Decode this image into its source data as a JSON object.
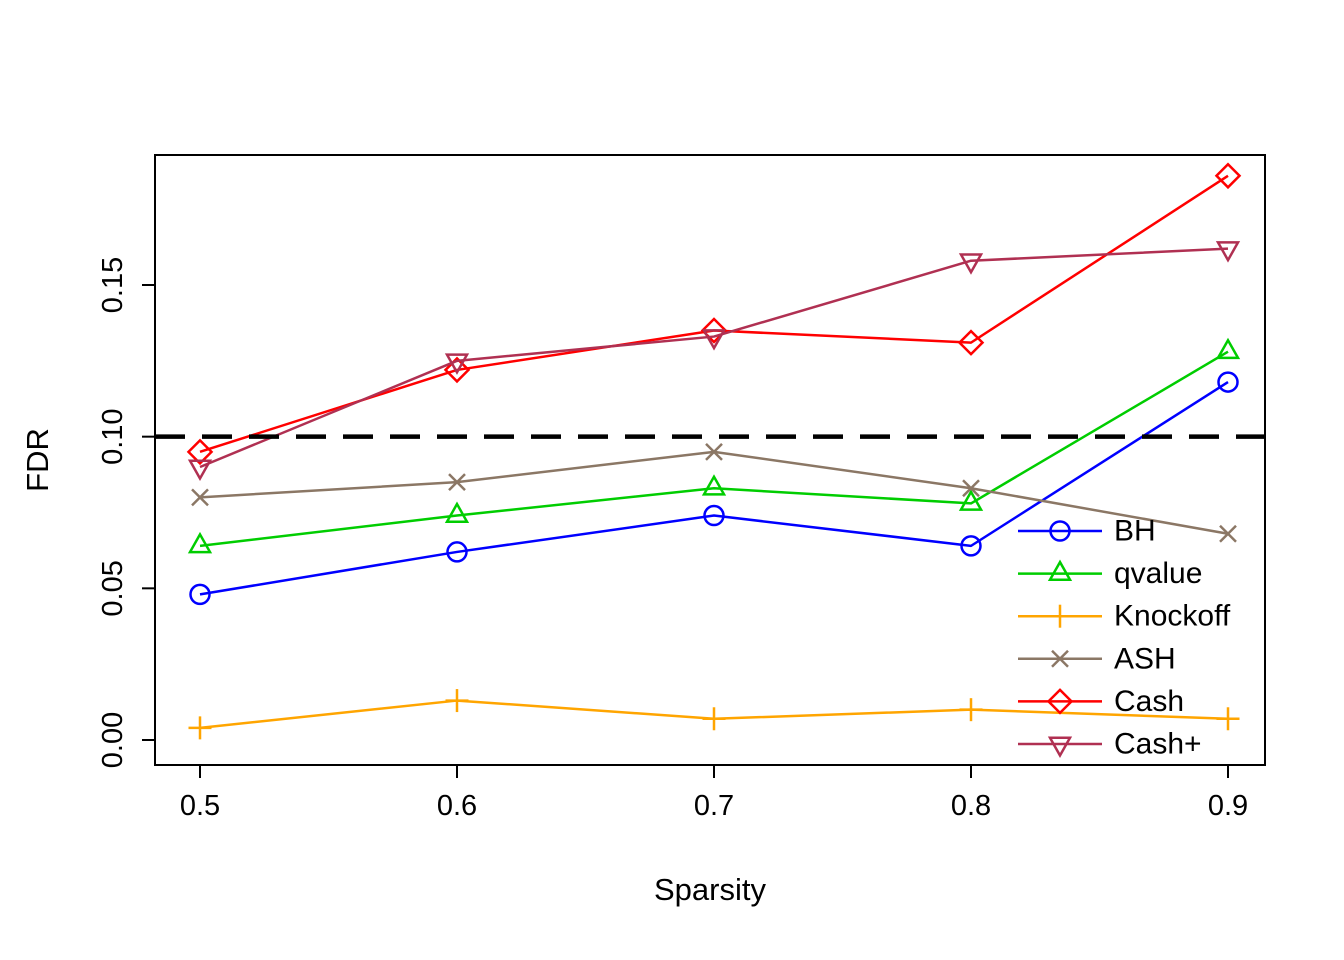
{
  "chart_data": {
    "type": "line",
    "title": "",
    "xlabel": "Sparsity",
    "ylabel": "FDR",
    "x": [
      0.5,
      0.6,
      0.7,
      0.8,
      0.9
    ],
    "x_ticks": [
      "0.5",
      "0.6",
      "0.7",
      "0.8",
      "0.9"
    ],
    "x_tick_values": [
      0.5,
      0.6,
      0.7,
      0.8,
      0.9
    ],
    "y_ticks": [
      "0.00",
      "0.05",
      "0.10",
      "0.15"
    ],
    "y_tick_values": [
      0.0,
      0.05,
      0.1,
      0.15
    ],
    "xlim": [
      0.48,
      0.915
    ],
    "ylim": [
      0.0,
      0.193
    ],
    "grid": false,
    "reference_line": {
      "y": 0.1,
      "style": "dashed",
      "color": "#000000"
    },
    "series": [
      {
        "name": "BH",
        "color": "#0000FF",
        "marker": "circle",
        "values": [
          0.048,
          0.062,
          0.074,
          0.064,
          0.118
        ]
      },
      {
        "name": "qvalue",
        "color": "#00CD00",
        "marker": "triangle-up",
        "values": [
          0.064,
          0.074,
          0.083,
          0.078,
          0.128
        ]
      },
      {
        "name": "Knockoff",
        "color": "#FFA500",
        "marker": "plus",
        "values": [
          0.004,
          0.013,
          0.007,
          0.01,
          0.007
        ]
      },
      {
        "name": "ASH",
        "color": "#8B7765",
        "marker": "x",
        "values": [
          0.08,
          0.085,
          0.095,
          0.083,
          0.068
        ]
      },
      {
        "name": "Cash",
        "color": "#FF0000",
        "marker": "diamond",
        "values": [
          0.095,
          0.122,
          0.135,
          0.131,
          0.186
        ]
      },
      {
        "name": "Cash+",
        "color": "#B03052",
        "marker": "triangle-down",
        "values": [
          0.09,
          0.125,
          0.133,
          0.158,
          0.162
        ]
      }
    ],
    "legend": {
      "position": "inside-bottom-right",
      "entries": [
        "BH",
        "qvalue",
        "Knockoff",
        "ASH",
        "Cash",
        "Cash+"
      ]
    }
  }
}
